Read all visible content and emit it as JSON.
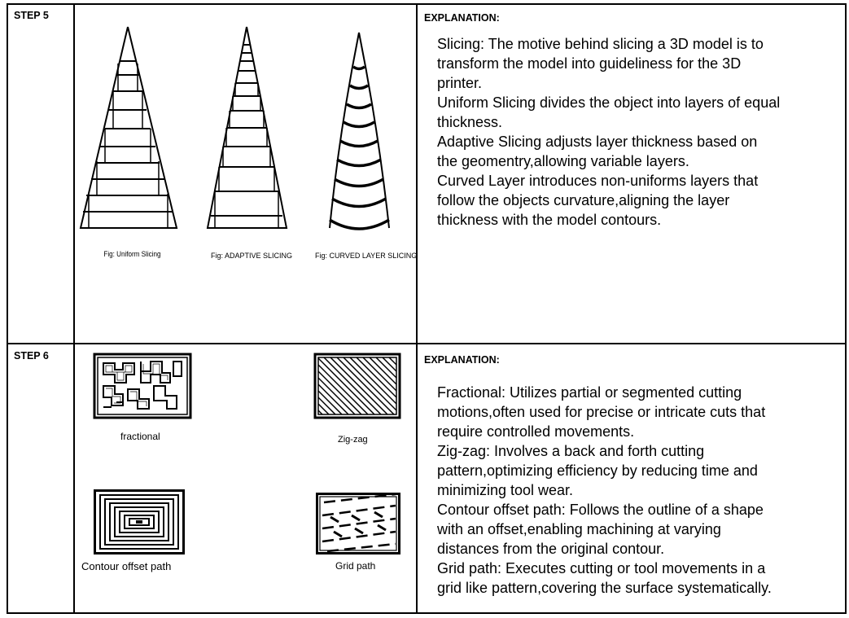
{
  "step5": {
    "label": "STEP 5",
    "explanation_heading": "EXPLANATION:",
    "captions": {
      "uniform": "Fig: Uniform Slicing",
      "adaptive": "Fig: ADAPTIVE SLICING",
      "curved": "Fig: CURVED LAYER SLICING"
    },
    "lines": [
      "Slicing: The motive behind slicing a 3D model is to",
      "transform the model into guideliness for the 3D",
      "printer.",
      "Uniform Slicing divides the object into layers of equal",
      "thickness.",
      "Adaptive Slicing adjusts layer thickness based on",
      "the geomentry,allowing variable layers.",
      "Curved Layer introduces non-uniforms layers that",
      "follow the objects curvature,aligning the layer",
      "thickness with the model contours."
    ]
  },
  "step6": {
    "label": "STEP 6",
    "explanation_heading": "EXPLANATION:",
    "captions": {
      "fractional": "fractional",
      "zigzag": "Zig-zag",
      "contour": "Contour offset path",
      "grid": "Grid path"
    },
    "lines": [
      "Fractional: Utilizes partial or segmented cutting",
      "motions,often used for precise or intricate cuts that",
      "require controlled movements.",
      "Zig-zag: Involves a back and forth cutting",
      "pattern,optimizing efficiency by reducing  time and",
      "minimizing tool wear.",
      "Contour offset path: Follows the outline of a shape",
      "with an offset,enabling machining at varying",
      "distances   from the original contour.",
      "Grid path: Executes cutting or tool movements in a",
      "grid like pattern,covering the surface systematically."
    ]
  }
}
